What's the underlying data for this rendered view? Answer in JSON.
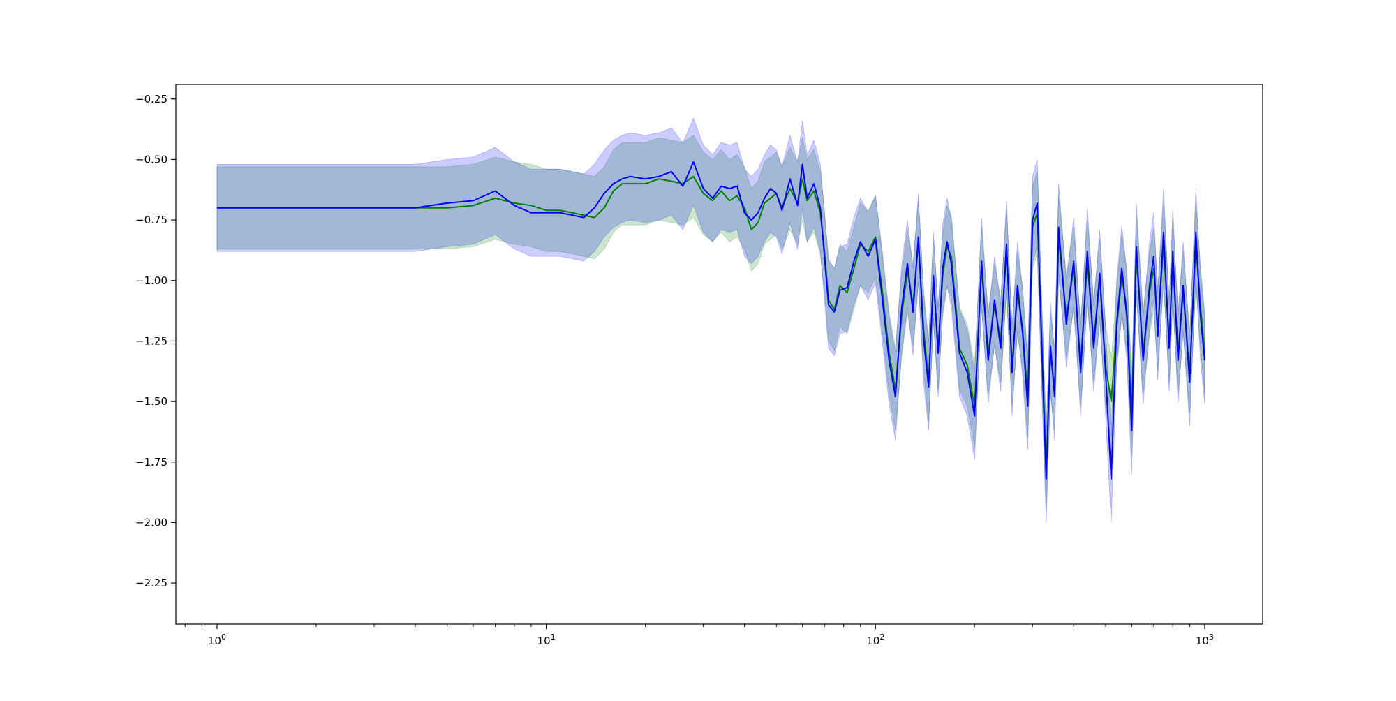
{
  "chart_data": {
    "type": "line",
    "xscale": "log",
    "xlim": [
      0.75,
      1500
    ],
    "ylim": [
      -2.42,
      -0.19
    ],
    "x_ticks": [
      {
        "value": 1,
        "base": "10",
        "exp": "0"
      },
      {
        "value": 10,
        "base": "10",
        "exp": "1"
      },
      {
        "value": 100,
        "base": "10",
        "exp": "2"
      },
      {
        "value": 1000,
        "base": "10",
        "exp": "3"
      }
    ],
    "y_ticks": [
      {
        "value": -0.25,
        "label": "−0.25"
      },
      {
        "value": -0.5,
        "label": "−0.50"
      },
      {
        "value": -0.75,
        "label": "−0.75"
      },
      {
        "value": -1.0,
        "label": "−1.00"
      },
      {
        "value": -1.25,
        "label": "−1.25"
      },
      {
        "value": -1.5,
        "label": "−1.50"
      },
      {
        "value": -1.75,
        "label": "−1.75"
      },
      {
        "value": -2.0,
        "label": "−2.00"
      },
      {
        "value": -2.25,
        "label": "−2.25"
      }
    ],
    "grid": false,
    "legend": "none",
    "series": [
      {
        "color": "#008000",
        "band_color": "#008000",
        "band_opacity": 0.2,
        "band_halfwidth": 0.17,
        "points": [
          [
            1,
            -0.7
          ],
          [
            2,
            -0.7
          ],
          [
            3,
            -0.7
          ],
          [
            4,
            -0.7
          ],
          [
            5,
            -0.7
          ],
          [
            6,
            -0.69
          ],
          [
            7,
            -0.66
          ],
          [
            8,
            -0.68
          ],
          [
            9,
            -0.69
          ],
          [
            10,
            -0.71
          ],
          [
            11,
            -0.71
          ],
          [
            12,
            -0.72
          ],
          [
            13,
            -0.73
          ],
          [
            14,
            -0.74
          ],
          [
            15,
            -0.7
          ],
          [
            16,
            -0.63
          ],
          [
            17,
            -0.6
          ],
          [
            18,
            -0.6
          ],
          [
            20,
            -0.6
          ],
          [
            22,
            -0.58
          ],
          [
            24,
            -0.59
          ],
          [
            26,
            -0.6
          ],
          [
            28,
            -0.57
          ],
          [
            30,
            -0.64
          ],
          [
            32,
            -0.67
          ],
          [
            34,
            -0.63
          ],
          [
            36,
            -0.67
          ],
          [
            38,
            -0.65
          ],
          [
            40,
            -0.7
          ],
          [
            42,
            -0.79
          ],
          [
            44,
            -0.76
          ],
          [
            46,
            -0.68
          ],
          [
            48,
            -0.66
          ],
          [
            50,
            -0.64
          ],
          [
            52,
            -0.7
          ],
          [
            55,
            -0.62
          ],
          [
            58,
            -0.68
          ],
          [
            60,
            -0.58
          ],
          [
            62,
            -0.67
          ],
          [
            65,
            -0.63
          ],
          [
            68,
            -0.72
          ],
          [
            70,
            -0.88
          ],
          [
            72,
            -1.08
          ],
          [
            75,
            -1.12
          ],
          [
            78,
            -1.02
          ],
          [
            82,
            -1.05
          ],
          [
            86,
            -0.95
          ],
          [
            90,
            -0.85
          ],
          [
            95,
            -0.88
          ],
          [
            100,
            -0.82
          ],
          [
            105,
            -1.05
          ],
          [
            110,
            -1.3
          ],
          [
            115,
            -1.45
          ],
          [
            120,
            -1.15
          ],
          [
            125,
            -0.96
          ],
          [
            130,
            -1.1
          ],
          [
            135,
            -0.84
          ],
          [
            140,
            -1.2
          ],
          [
            145,
            -1.42
          ],
          [
            150,
            -1.0
          ],
          [
            155,
            -1.28
          ],
          [
            160,
            -0.98
          ],
          [
            165,
            -0.86
          ],
          [
            170,
            -0.9
          ],
          [
            180,
            -1.28
          ],
          [
            190,
            -1.35
          ],
          [
            200,
            -1.52
          ],
          [
            210,
            -0.95
          ],
          [
            220,
            -1.3
          ],
          [
            230,
            -1.1
          ],
          [
            240,
            -1.25
          ],
          [
            250,
            -0.88
          ],
          [
            260,
            -1.35
          ],
          [
            270,
            -1.05
          ],
          [
            280,
            -1.2
          ],
          [
            290,
            -1.48
          ],
          [
            300,
            -0.78
          ],
          [
            310,
            -0.72
          ],
          [
            320,
            -1.25
          ],
          [
            330,
            -1.78
          ],
          [
            340,
            -1.3
          ],
          [
            350,
            -1.45
          ],
          [
            360,
            -0.82
          ],
          [
            380,
            -1.15
          ],
          [
            400,
            -0.95
          ],
          [
            420,
            -1.35
          ],
          [
            440,
            -0.92
          ],
          [
            460,
            -1.25
          ],
          [
            480,
            -1.0
          ],
          [
            500,
            -1.35
          ],
          [
            520,
            -1.5
          ],
          [
            540,
            -1.2
          ],
          [
            560,
            -0.98
          ],
          [
            580,
            -1.12
          ],
          [
            600,
            -1.55
          ],
          [
            620,
            -0.9
          ],
          [
            650,
            -1.3
          ],
          [
            680,
            -1.05
          ],
          [
            700,
            -0.95
          ],
          [
            720,
            -1.2
          ],
          [
            750,
            -0.85
          ],
          [
            780,
            -1.25
          ],
          [
            800,
            -0.92
          ],
          [
            830,
            -1.3
          ],
          [
            860,
            -1.05
          ],
          [
            900,
            -1.38
          ],
          [
            940,
            -0.85
          ],
          [
            970,
            -1.1
          ],
          [
            1000,
            -1.3
          ]
        ]
      },
      {
        "color": "#0000ff",
        "band_color": "#0000ff",
        "band_opacity": 0.2,
        "band_halfwidth": 0.18,
        "points": [
          [
            1,
            -0.7
          ],
          [
            2,
            -0.7
          ],
          [
            3,
            -0.7
          ],
          [
            4,
            -0.7
          ],
          [
            5,
            -0.68
          ],
          [
            6,
            -0.67
          ],
          [
            7,
            -0.63
          ],
          [
            8,
            -0.69
          ],
          [
            9,
            -0.72
          ],
          [
            10,
            -0.72
          ],
          [
            11,
            -0.72
          ],
          [
            12,
            -0.73
          ],
          [
            13,
            -0.74
          ],
          [
            14,
            -0.7
          ],
          [
            15,
            -0.64
          ],
          [
            16,
            -0.6
          ],
          [
            17,
            -0.58
          ],
          [
            18,
            -0.57
          ],
          [
            20,
            -0.58
          ],
          [
            22,
            -0.57
          ],
          [
            24,
            -0.55
          ],
          [
            26,
            -0.61
          ],
          [
            28,
            -0.51
          ],
          [
            30,
            -0.62
          ],
          [
            32,
            -0.66
          ],
          [
            34,
            -0.61
          ],
          [
            36,
            -0.62
          ],
          [
            38,
            -0.61
          ],
          [
            40,
            -0.72
          ],
          [
            42,
            -0.75
          ],
          [
            44,
            -0.72
          ],
          [
            46,
            -0.66
          ],
          [
            48,
            -0.62
          ],
          [
            50,
            -0.64
          ],
          [
            52,
            -0.71
          ],
          [
            55,
            -0.58
          ],
          [
            58,
            -0.69
          ],
          [
            60,
            -0.52
          ],
          [
            62,
            -0.66
          ],
          [
            65,
            -0.6
          ],
          [
            68,
            -0.7
          ],
          [
            70,
            -0.9
          ],
          [
            72,
            -1.1
          ],
          [
            75,
            -1.13
          ],
          [
            78,
            -1.04
          ],
          [
            82,
            -1.03
          ],
          [
            86,
            -0.92
          ],
          [
            90,
            -0.84
          ],
          [
            95,
            -0.9
          ],
          [
            100,
            -0.83
          ],
          [
            105,
            -1.08
          ],
          [
            110,
            -1.33
          ],
          [
            115,
            -1.48
          ],
          [
            120,
            -1.12
          ],
          [
            125,
            -0.93
          ],
          [
            130,
            -1.13
          ],
          [
            135,
            -0.82
          ],
          [
            140,
            -1.24
          ],
          [
            145,
            -1.44
          ],
          [
            150,
            -0.98
          ],
          [
            155,
            -1.3
          ],
          [
            160,
            -0.95
          ],
          [
            165,
            -0.84
          ],
          [
            170,
            -0.93
          ],
          [
            180,
            -1.3
          ],
          [
            190,
            -1.38
          ],
          [
            200,
            -1.56
          ],
          [
            210,
            -0.92
          ],
          [
            220,
            -1.33
          ],
          [
            230,
            -1.08
          ],
          [
            240,
            -1.28
          ],
          [
            250,
            -0.85
          ],
          [
            260,
            -1.38
          ],
          [
            270,
            -1.02
          ],
          [
            280,
            -1.22
          ],
          [
            290,
            -1.52
          ],
          [
            300,
            -0.75
          ],
          [
            310,
            -0.68
          ],
          [
            320,
            -1.28
          ],
          [
            330,
            -1.82
          ],
          [
            340,
            -1.27
          ],
          [
            350,
            -1.48
          ],
          [
            360,
            -0.78
          ],
          [
            380,
            -1.18
          ],
          [
            400,
            -0.92
          ],
          [
            420,
            -1.38
          ],
          [
            440,
            -0.88
          ],
          [
            460,
            -1.28
          ],
          [
            480,
            -0.97
          ],
          [
            500,
            -1.38
          ],
          [
            520,
            -1.82
          ],
          [
            540,
            -1.18
          ],
          [
            560,
            -0.95
          ],
          [
            580,
            -1.15
          ],
          [
            600,
            -1.62
          ],
          [
            620,
            -0.86
          ],
          [
            650,
            -1.33
          ],
          [
            680,
            -1.02
          ],
          [
            700,
            -0.9
          ],
          [
            720,
            -1.23
          ],
          [
            750,
            -0.8
          ],
          [
            780,
            -1.28
          ],
          [
            800,
            -0.88
          ],
          [
            830,
            -1.33
          ],
          [
            860,
            -1.02
          ],
          [
            900,
            -1.42
          ],
          [
            940,
            -0.8
          ],
          [
            970,
            -1.14
          ],
          [
            1000,
            -1.33
          ]
        ]
      }
    ]
  }
}
